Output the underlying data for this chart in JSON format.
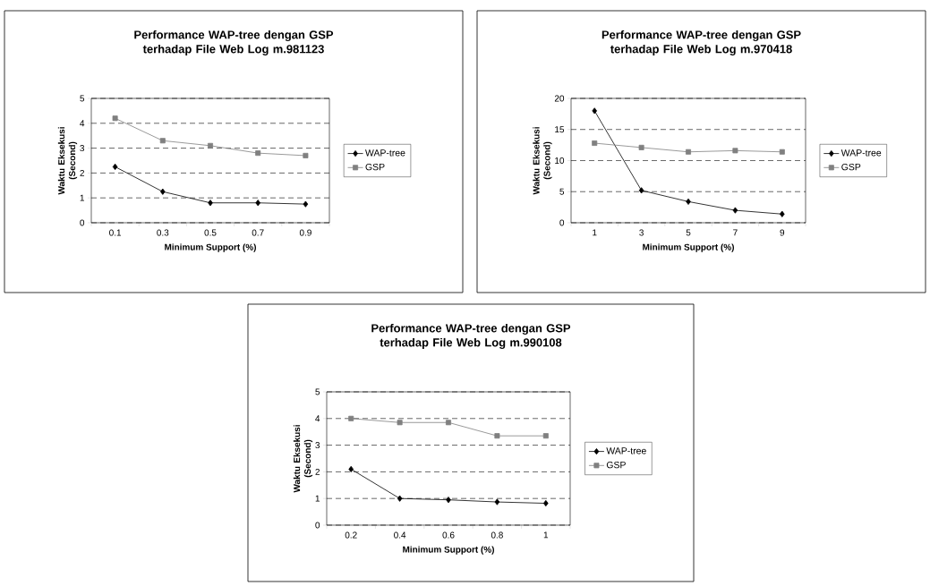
{
  "chart_data": [
    {
      "type": "line",
      "title": "Performance WAP-tree dengan GSP terhadap File Web Log m.981123",
      "xlabel": "Minimum Support (%)",
      "ylabel": "Waktu Eksekusi (Second)",
      "categories": [
        "0.1",
        "0.3",
        "0.5",
        "0.7",
        "0.9"
      ],
      "ylim": [
        0,
        5
      ],
      "yticks": [
        0,
        1,
        2,
        3,
        4,
        5
      ],
      "grid": "y",
      "legend": "right",
      "line_style": "solid",
      "series": [
        {
          "name": "WAP-tree",
          "color": "#000000",
          "marker": "diamond",
          "values": [
            2.25,
            1.25,
            0.8,
            0.8,
            0.75
          ]
        },
        {
          "name": "GSP",
          "color": "#808080",
          "marker": "square",
          "values": [
            4.2,
            3.3,
            3.1,
            2.8,
            2.7
          ]
        }
      ]
    },
    {
      "type": "line",
      "title": "Performance WAP-tree dengan GSP terhadap File Web Log m.970418",
      "xlabel": "Minimum Support (%)",
      "ylabel": "Waktu Eksekusi (Second)",
      "categories": [
        "1",
        "3",
        "5",
        "7",
        "9"
      ],
      "ylim": [
        0,
        20
      ],
      "yticks": [
        0,
        5,
        10,
        15,
        20
      ],
      "grid": "y",
      "legend": "right",
      "line_style": "solid",
      "series": [
        {
          "name": "WAP-tree",
          "color": "#000000",
          "marker": "diamond",
          "values": [
            18,
            5.2,
            3.4,
            2,
            1.4
          ]
        },
        {
          "name": "GSP",
          "color": "#808080",
          "marker": "square",
          "values": [
            12.8,
            12.1,
            11.4,
            11.6,
            11.4
          ]
        }
      ]
    },
    {
      "type": "line",
      "title": "Performance WAP-tree dengan GSP terhadap File Web Log m.990108",
      "xlabel": "Minimum Support (%)",
      "ylabel": "Waktu Eksekusi (Second)",
      "categories": [
        "0.2",
        "0.4",
        "0.6",
        "0.8",
        "1"
      ],
      "ylim": [
        0,
        5
      ],
      "yticks": [
        0,
        1,
        2,
        3,
        4,
        5
      ],
      "grid": "y",
      "legend": "right",
      "line_style": "solid",
      "series": [
        {
          "name": "WAP-tree",
          "color": "#000000",
          "marker": "diamond",
          "values": [
            2.1,
            1.0,
            0.95,
            0.87,
            0.82
          ]
        },
        {
          "name": "GSP",
          "color": "#808080",
          "marker": "square",
          "values": [
            4.0,
            3.85,
            3.85,
            3.35,
            3.35
          ]
        }
      ]
    }
  ]
}
